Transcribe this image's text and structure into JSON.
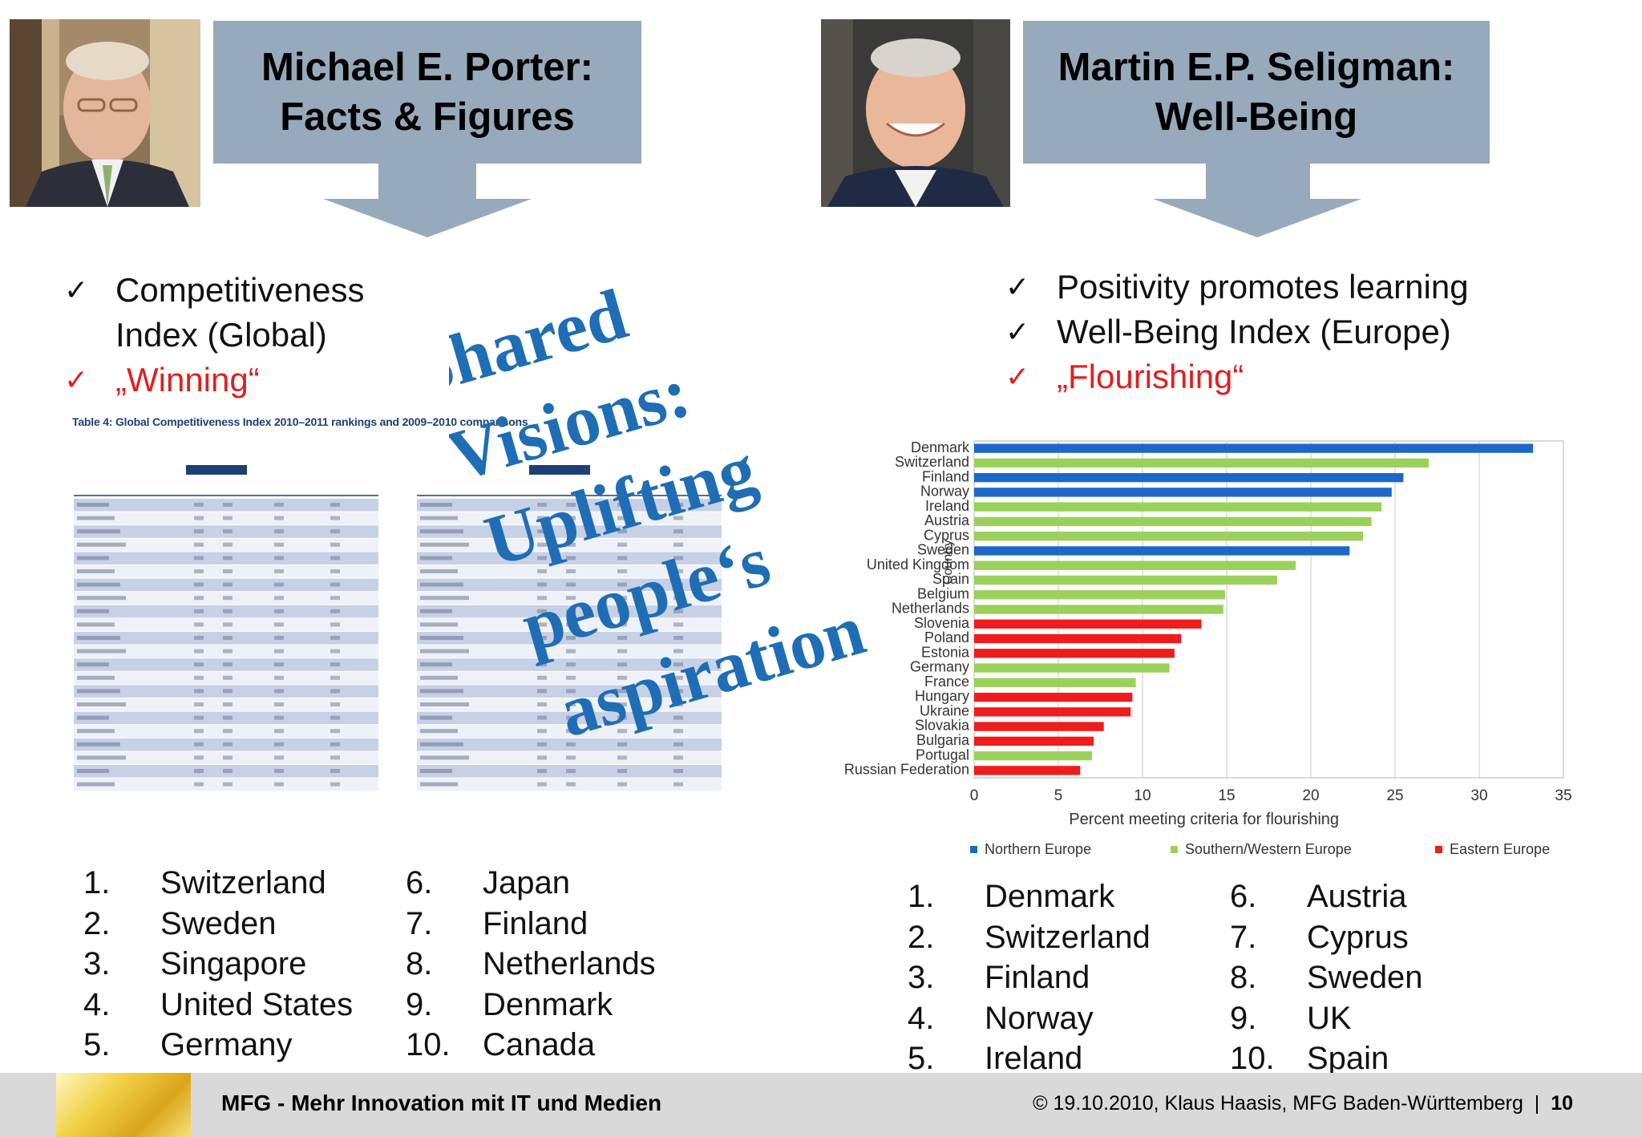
{
  "porter": {
    "title_line1": "Michael E. Porter:",
    "title_line2": "Facts & Figures",
    "bullets": [
      {
        "check": "✓",
        "text_line1": "Competitiveness",
        "text_line2": "Index (Global)"
      },
      {
        "check": "✓",
        "text": "„Winning“"
      }
    ],
    "table_title": "Table 4: Global Competitiveness Index 2010–2011 rankings and 2009–2010 comparisons",
    "ranking": [
      {
        "num": "1.",
        "label": "Switzerland"
      },
      {
        "num": "2.",
        "label": "Sweden"
      },
      {
        "num": "3.",
        "label": "Singapore"
      },
      {
        "num": "4.",
        "label": "United States"
      },
      {
        "num": "5.",
        "label": "Germany"
      },
      {
        "num": "6.",
        "label": "Japan"
      },
      {
        "num": "7.",
        "label": "Finland"
      },
      {
        "num": "8.",
        "label": "Netherlands"
      },
      {
        "num": "9.",
        "label": "Denmark"
      },
      {
        "num": "10.",
        "label": "Canada"
      }
    ]
  },
  "seligman": {
    "title_line1": "Martin E.P. Seligman:",
    "title_line2": "Well-Being",
    "bullets": [
      {
        "check": "✓",
        "text": "Positivity promotes learning"
      },
      {
        "check": "✓",
        "text": "Well-Being Index (Europe)"
      },
      {
        "check": "✓",
        "text": "„Flourishing“"
      }
    ],
    "ranking": [
      {
        "num": "1.",
        "label": "Denmark"
      },
      {
        "num": "2.",
        "label": "Switzerland"
      },
      {
        "num": "3.",
        "label": "Finland"
      },
      {
        "num": "4.",
        "label": "Norway"
      },
      {
        "num": "5.",
        "label": "Ireland"
      },
      {
        "num": "6.",
        "label": "Austria"
      },
      {
        "num": "7.",
        "label": "Cyprus"
      },
      {
        "num": "8.",
        "label": "Sweden"
      },
      {
        "num": "9.",
        "label": "UK"
      },
      {
        "num": "10.",
        "label": "Spain"
      }
    ]
  },
  "overlay": {
    "lines": [
      "Shared",
      "Visions:",
      "Uplifting",
      "people‘s",
      "aspiration"
    ],
    "color": "#1f6db5"
  },
  "colors": {
    "callout": "#96aabb",
    "red_text": "#e02020",
    "northern": "#1f66c9",
    "southern": "#9ad15a",
    "eastern": "#ee1c1c"
  },
  "footer": {
    "left": "MFG - Mehr Innovation mit IT und Medien",
    "right": "© 19.10.2010, Klaus Haasis, MFG Baden-Württemberg",
    "page": "10"
  },
  "chart_data": {
    "type": "bar",
    "orientation": "horizontal",
    "categories": [
      "Denmark",
      "Switzerland",
      "Finland",
      "Norway",
      "Ireland",
      "Austria",
      "Cyprus",
      "Sweden",
      "United Kingdom",
      "Spain",
      "Belgium",
      "Netherlands",
      "Slovenia",
      "Poland",
      "Estonia",
      "Germany",
      "France",
      "Hungary",
      "Ukraine",
      "Slovakia",
      "Bulgaria",
      "Portugal",
      "Russian Federation"
    ],
    "values": [
      33.2,
      27,
      25.5,
      24.8,
      24.2,
      23.6,
      23.1,
      22.3,
      19.1,
      18,
      14.9,
      14.8,
      13.5,
      12.3,
      11.9,
      11.6,
      9.6,
      9.4,
      9.3,
      7.7,
      7.1,
      7,
      6.3
    ],
    "groups": [
      "Northern Europe",
      "Southern/Western Europe",
      "Northern Europe",
      "Northern Europe",
      "Southern/Western Europe",
      "Southern/Western Europe",
      "Southern/Western Europe",
      "Northern Europe",
      "Southern/Western Europe",
      "Southern/Western Europe",
      "Southern/Western Europe",
      "Southern/Western Europe",
      "Eastern Europe",
      "Eastern Europe",
      "Eastern Europe",
      "Southern/Western Europe",
      "Southern/Western Europe",
      "Eastern Europe",
      "Eastern Europe",
      "Eastern Europe",
      "Eastern Europe",
      "Southern/Western Europe",
      "Eastern Europe"
    ],
    "xlabel": "Percent meeting criteria for flourishing",
    "ylabel": "Country",
    "xlim": [
      0,
      35
    ],
    "xticks": [
      "0",
      "5",
      "10",
      "15",
      "20",
      "25",
      "30",
      "35"
    ],
    "grid": true,
    "legend": [
      "Northern Europe",
      "Southern/Western Europe",
      "Eastern Europe"
    ],
    "legend_position": "bottom"
  }
}
